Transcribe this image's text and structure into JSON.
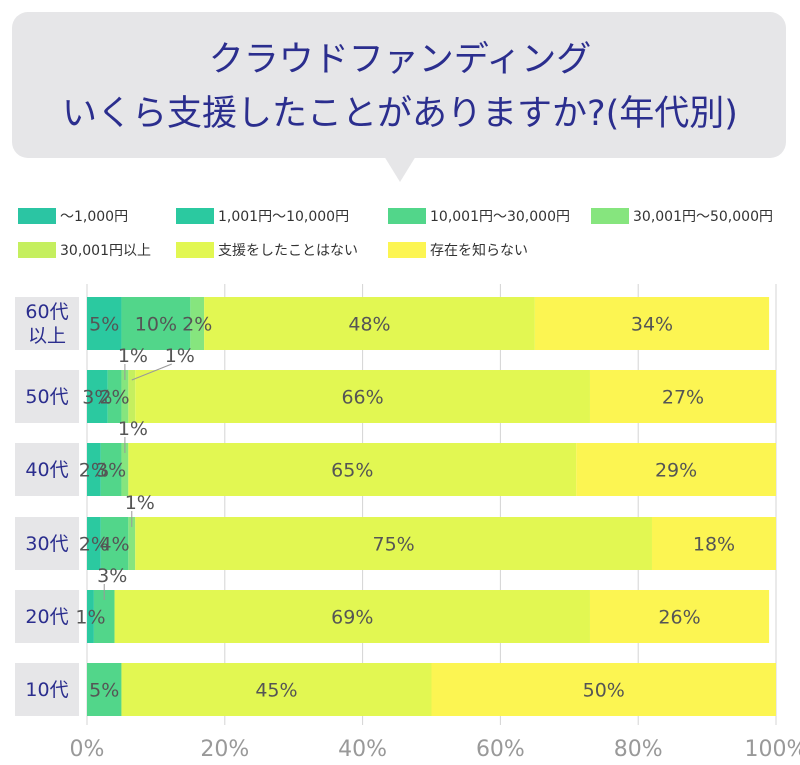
{
  "title": {
    "line1": "クラウドファンディング",
    "line2": "いくら支援したことがありますか?(年代別)"
  },
  "colors": [
    "#2bc5a3",
    "#2bc9a0",
    "#52d68a",
    "#86e57e",
    "#c5ef5f",
    "#e2f752",
    "#fcf552"
  ],
  "chart_data": {
    "type": "bar",
    "orientation": "horizontal",
    "stacked": true,
    "categories": [
      "60代\n以上",
      "50代",
      "40代",
      "30代",
      "20代",
      "10代"
    ],
    "series": [
      {
        "name": "〜1,000円",
        "values": [
          0,
          0,
          0,
          0,
          0,
          0
        ]
      },
      {
        "name": "1,001円〜10,000円",
        "values": [
          5,
          3,
          2,
          2,
          1,
          0
        ]
      },
      {
        "name": "10,001円〜30,000円",
        "values": [
          10,
          2,
          3,
          4,
          3,
          5
        ]
      },
      {
        "name": "30,001円〜50,000円",
        "values": [
          2,
          1,
          1,
          1,
          0,
          0
        ]
      },
      {
        "name": "30,001円以上",
        "values": [
          0,
          1,
          0,
          0,
          0,
          0
        ]
      },
      {
        "name": "支援をしたことはない",
        "values": [
          48,
          66,
          65,
          75,
          69,
          45
        ]
      },
      {
        "name": "存在を知らない",
        "values": [
          34,
          27,
          29,
          18,
          26,
          50
        ]
      }
    ],
    "value_labels": [
      [
        "",
        "5%",
        "10%",
        "2%",
        "",
        "48%",
        "34%"
      ],
      [
        "",
        "3%",
        "2%",
        "1%",
        "1%",
        "66%",
        "27%"
      ],
      [
        "",
        "2%",
        "3%",
        "1%",
        "",
        "65%",
        "29%"
      ],
      [
        "",
        "2%",
        "4%",
        "1%",
        "",
        "75%",
        "18%"
      ],
      [
        "",
        "1%",
        "3%",
        "",
        "",
        "69%",
        "26%"
      ],
      [
        "",
        "",
        "5%",
        "",
        "",
        "45%",
        "50%"
      ]
    ],
    "callouts": [
      [
        1,
        3
      ],
      [
        1,
        4
      ],
      [
        2,
        3
      ],
      [
        3,
        3
      ],
      [
        4,
        2
      ]
    ],
    "xlim": [
      0,
      100
    ],
    "xticks": [
      "0%",
      "20%",
      "40%",
      "60%",
      "80%",
      "100%"
    ],
    "grid": true,
    "legend_position": "top"
  }
}
